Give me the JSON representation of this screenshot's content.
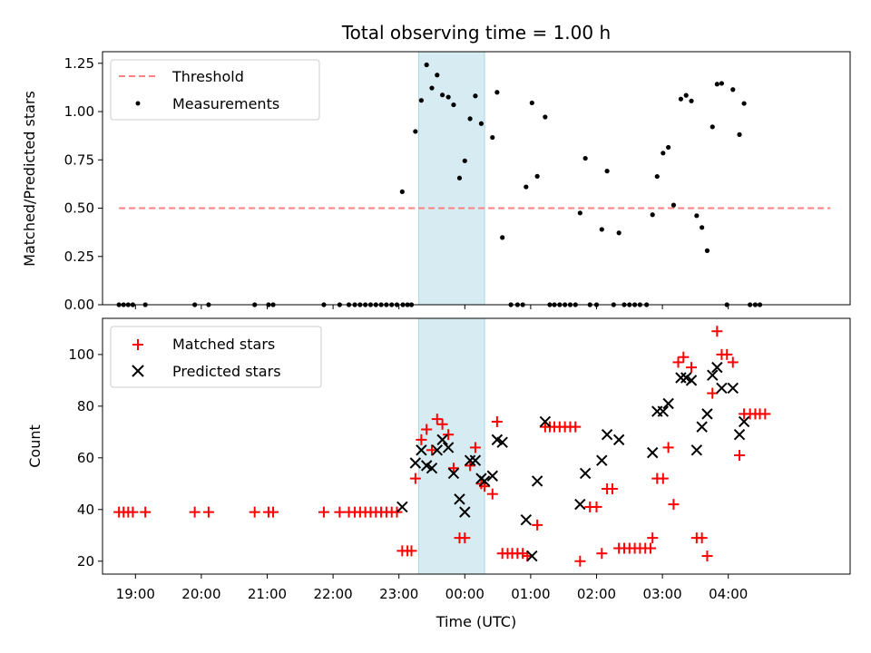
{
  "chart_data": {
    "title": "Total observing time = 1.00 h",
    "xlabel": "Time (UTC)",
    "x_unit": "hours after 18:00 UTC",
    "xlim": [
      18.5,
      29.85
    ],
    "x_ticks": [
      {
        "value": 19,
        "label": "19:00"
      },
      {
        "value": 20,
        "label": "20:00"
      },
      {
        "value": 21,
        "label": "21:00"
      },
      {
        "value": 22,
        "label": "22:00"
      },
      {
        "value": 23,
        "label": "23:00"
      },
      {
        "value": 24,
        "label": "00:00"
      },
      {
        "value": 25,
        "label": "01:00"
      },
      {
        "value": 26,
        "label": "02:00"
      },
      {
        "value": 27,
        "label": "03:00"
      },
      {
        "value": 28,
        "label": "04:00"
      }
    ],
    "highlight_span": [
      23.3,
      24.3
    ],
    "highlight_color": "#add8e6",
    "top": {
      "type": "scatter",
      "ylabel": "Matched/Predicted stars",
      "ylim": [
        0,
        1.31
      ],
      "y_ticks": [
        "0.00",
        "0.25",
        "0.50",
        "0.75",
        "1.00",
        "1.25"
      ],
      "legend": {
        "position": "top-left",
        "entries": [
          "Threshold",
          "Measurements"
        ]
      },
      "threshold": {
        "name": "Threshold",
        "value": 0.5,
        "x_range": [
          18.75,
          29.55
        ],
        "color": "#ff8080"
      },
      "series": [
        {
          "name": "Measurements",
          "color": "#000000",
          "points": [
            [
              18.75,
              0
            ],
            [
              18.82,
              0
            ],
            [
              18.89,
              0
            ],
            [
              18.96,
              0
            ],
            [
              19.15,
              0
            ],
            [
              19.9,
              0
            ],
            [
              20.11,
              0
            ],
            [
              20.81,
              0
            ],
            [
              21.02,
              0
            ],
            [
              21.09,
              0
            ],
            [
              21.86,
              0
            ],
            [
              22.1,
              0
            ],
            [
              22.24,
              0
            ],
            [
              22.33,
              0
            ],
            [
              22.41,
              0
            ],
            [
              22.49,
              0
            ],
            [
              22.57,
              0
            ],
            [
              22.65,
              0
            ],
            [
              22.73,
              0
            ],
            [
              22.81,
              0
            ],
            [
              22.89,
              0
            ],
            [
              22.97,
              0
            ],
            [
              23.06,
              0
            ],
            [
              23.13,
              0
            ],
            [
              23.19,
              0
            ],
            [
              23.05,
              0.585
            ],
            [
              23.25,
              0.897
            ],
            [
              23.34,
              1.058
            ],
            [
              23.42,
              1.242
            ],
            [
              23.5,
              1.122
            ],
            [
              23.58,
              1.189
            ],
            [
              23.66,
              1.086
            ],
            [
              23.75,
              1.075
            ],
            [
              23.83,
              1.035
            ],
            [
              23.92,
              0.656
            ],
            [
              24.0,
              0.745
            ],
            [
              24.08,
              0.963
            ],
            [
              24.16,
              1.081
            ],
            [
              24.25,
              0.938
            ],
            [
              24.42,
              0.866
            ],
            [
              24.49,
              1.1
            ],
            [
              24.57,
              0.348
            ],
            [
              24.7,
              0
            ],
            [
              24.8,
              0
            ],
            [
              24.88,
              0
            ],
            [
              24.93,
              0.61
            ],
            [
              25.02,
              1.045
            ],
            [
              25.1,
              0.665
            ],
            [
              25.22,
              0.972
            ],
            [
              25.29,
              0
            ],
            [
              25.36,
              0
            ],
            [
              25.44,
              0
            ],
            [
              25.52,
              0
            ],
            [
              25.6,
              0
            ],
            [
              25.68,
              0
            ],
            [
              25.75,
              0.475
            ],
            [
              25.83,
              0.758
            ],
            [
              25.9,
              0
            ],
            [
              26.0,
              0
            ],
            [
              26.08,
              0.39
            ],
            [
              26.16,
              0.692
            ],
            [
              26.26,
              0
            ],
            [
              26.34,
              0.372
            ],
            [
              26.42,
              0
            ],
            [
              26.5,
              0
            ],
            [
              26.58,
              0
            ],
            [
              26.66,
              0
            ],
            [
              26.76,
              0
            ],
            [
              26.85,
              0.466
            ],
            [
              26.92,
              0.664
            ],
            [
              27.01,
              0.785
            ],
            [
              27.09,
              0.815
            ],
            [
              27.17,
              0.516
            ],
            [
              27.28,
              1.065
            ],
            [
              27.36,
              1.084
            ],
            [
              27.44,
              1.055
            ],
            [
              27.52,
              0.461
            ],
            [
              27.6,
              0.4
            ],
            [
              27.68,
              0.28
            ],
            [
              27.76,
              0.921
            ],
            [
              27.83,
              1.142
            ],
            [
              27.9,
              1.146
            ],
            [
              27.98,
              0
            ],
            [
              28.07,
              1.114
            ],
            [
              28.17,
              0.881
            ],
            [
              28.24,
              1.042
            ],
            [
              28.33,
              0
            ],
            [
              28.41,
              0
            ],
            [
              28.48,
              0
            ]
          ]
        }
      ]
    },
    "bottom": {
      "type": "scatter",
      "ylabel": "Count",
      "ylim": [
        15,
        114
      ],
      "y_ticks": [
        20,
        40,
        60,
        80,
        100
      ],
      "legend": {
        "position": "top-left",
        "entries": [
          "Matched stars",
          "Predicted stars"
        ]
      },
      "series": [
        {
          "name": "Matched stars",
          "marker": "plus",
          "color": "#ff0000",
          "points": [
            [
              18.75,
              39
            ],
            [
              18.82,
              39
            ],
            [
              18.89,
              39
            ],
            [
              18.96,
              39
            ],
            [
              19.15,
              39
            ],
            [
              19.9,
              39
            ],
            [
              20.11,
              39
            ],
            [
              20.81,
              39
            ],
            [
              21.02,
              39
            ],
            [
              21.09,
              39
            ],
            [
              21.86,
              39
            ],
            [
              22.1,
              39
            ],
            [
              22.24,
              39
            ],
            [
              22.33,
              39
            ],
            [
              22.41,
              39
            ],
            [
              22.49,
              39
            ],
            [
              22.57,
              39
            ],
            [
              22.65,
              39
            ],
            [
              22.73,
              39
            ],
            [
              22.81,
              39
            ],
            [
              22.89,
              39
            ],
            [
              22.97,
              39
            ],
            [
              23.05,
              24
            ],
            [
              23.13,
              24
            ],
            [
              23.19,
              24
            ],
            [
              23.25,
              52
            ],
            [
              23.34,
              67
            ],
            [
              23.42,
              71
            ],
            [
              23.5,
              63
            ],
            [
              23.58,
              75
            ],
            [
              23.66,
              73
            ],
            [
              23.75,
              69
            ],
            [
              23.83,
              56
            ],
            [
              23.92,
              29
            ],
            [
              24.0,
              29
            ],
            [
              24.08,
              57
            ],
            [
              24.16,
              64
            ],
            [
              24.25,
              50
            ],
            [
              24.3,
              49
            ],
            [
              24.42,
              46
            ],
            [
              24.49,
              74
            ],
            [
              24.57,
              23
            ],
            [
              24.65,
              23
            ],
            [
              24.72,
              23
            ],
            [
              24.8,
              23
            ],
            [
              24.88,
              23
            ],
            [
              24.95,
              22
            ],
            [
              25.1,
              34
            ],
            [
              25.22,
              72
            ],
            [
              25.29,
              72
            ],
            [
              25.36,
              72
            ],
            [
              25.44,
              72
            ],
            [
              25.52,
              72
            ],
            [
              25.6,
              72
            ],
            [
              25.68,
              72
            ],
            [
              25.75,
              20
            ],
            [
              25.9,
              41
            ],
            [
              26.0,
              41
            ],
            [
              26.08,
              23
            ],
            [
              26.16,
              48
            ],
            [
              26.24,
              48
            ],
            [
              26.34,
              25
            ],
            [
              26.42,
              25
            ],
            [
              26.5,
              25
            ],
            [
              26.58,
              25
            ],
            [
              26.66,
              25
            ],
            [
              26.74,
              25
            ],
            [
              26.82,
              25
            ],
            [
              26.85,
              29
            ],
            [
              26.92,
              52
            ],
            [
              27.01,
              52
            ],
            [
              27.09,
              64
            ],
            [
              27.17,
              42
            ],
            [
              27.24,
              97
            ],
            [
              27.32,
              99
            ],
            [
              27.44,
              95
            ],
            [
              27.52,
              29
            ],
            [
              27.6,
              29
            ],
            [
              27.68,
              22
            ],
            [
              27.76,
              85
            ],
            [
              27.83,
              109
            ],
            [
              27.9,
              100
            ],
            [
              27.98,
              100
            ],
            [
              28.07,
              97
            ],
            [
              28.17,
              61
            ],
            [
              28.24,
              77
            ],
            [
              28.33,
              77
            ],
            [
              28.41,
              77
            ],
            [
              28.48,
              77
            ],
            [
              28.56,
              77
            ]
          ]
        },
        {
          "name": "Predicted stars",
          "marker": "x",
          "color": "#000000",
          "points": [
            [
              23.05,
              41
            ],
            [
              23.25,
              58
            ],
            [
              23.34,
              63
            ],
            [
              23.42,
              57
            ],
            [
              23.5,
              56
            ],
            [
              23.58,
              63
            ],
            [
              23.66,
              67
            ],
            [
              23.75,
              64
            ],
            [
              23.83,
              54
            ],
            [
              23.92,
              44
            ],
            [
              24.0,
              39
            ],
            [
              24.08,
              59
            ],
            [
              24.16,
              59
            ],
            [
              24.25,
              52
            ],
            [
              24.3,
              51
            ],
            [
              24.42,
              53
            ],
            [
              24.49,
              67
            ],
            [
              24.57,
              66
            ],
            [
              24.93,
              36
            ],
            [
              25.02,
              22
            ],
            [
              25.1,
              51
            ],
            [
              25.22,
              74
            ],
            [
              25.75,
              42
            ],
            [
              25.83,
              54
            ],
            [
              26.08,
              59
            ],
            [
              26.16,
              69
            ],
            [
              26.34,
              67
            ],
            [
              26.85,
              62
            ],
            [
              26.92,
              78
            ],
            [
              27.01,
              78
            ],
            [
              27.09,
              81
            ],
            [
              27.28,
              91
            ],
            [
              27.36,
              91
            ],
            [
              27.44,
              90
            ],
            [
              27.52,
              63
            ],
            [
              27.6,
              72
            ],
            [
              27.68,
              77
            ],
            [
              27.76,
              92
            ],
            [
              27.83,
              95
            ],
            [
              27.9,
              87
            ],
            [
              28.07,
              87
            ],
            [
              28.17,
              69
            ],
            [
              28.24,
              74
            ]
          ]
        }
      ]
    }
  }
}
